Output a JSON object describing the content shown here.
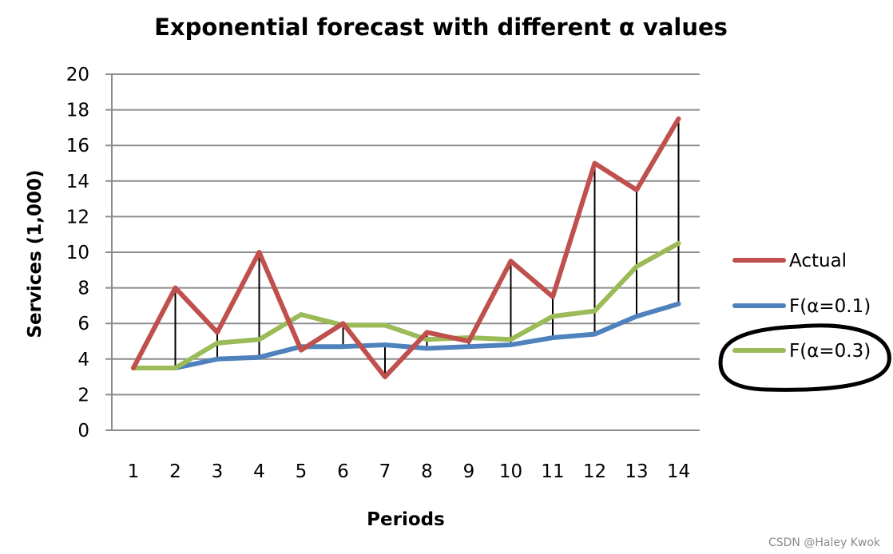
{
  "chart_data": {
    "type": "line",
    "title": "Exponential forecast with different α values",
    "xlabel": "Periods",
    "ylabel": "Services (1,000)",
    "categories": [
      "1",
      "2",
      "3",
      "4",
      "5",
      "6",
      "7",
      "8",
      "9",
      "10",
      "11",
      "12",
      "13",
      "14"
    ],
    "ylim": [
      0,
      20
    ],
    "yticks": [
      0,
      2,
      4,
      6,
      8,
      10,
      12,
      14,
      16,
      18,
      20
    ],
    "grid": true,
    "legend_position": "right",
    "series": [
      {
        "name": "Actual",
        "color": "#c0504d",
        "values": [
          3.5,
          8.0,
          5.5,
          10.0,
          4.5,
          6.0,
          3.0,
          5.5,
          5.0,
          9.5,
          7.5,
          15.0,
          13.5,
          17.5
        ]
      },
      {
        "name": "F(α=0.1)",
        "color": "#4f81bd",
        "values": [
          3.5,
          3.5,
          4.0,
          4.1,
          4.7,
          4.7,
          4.8,
          4.6,
          4.7,
          4.8,
          5.2,
          5.4,
          6.4,
          7.1
        ]
      },
      {
        "name": "F(α=0.3)",
        "color": "#9bbb59",
        "values": [
          3.5,
          3.5,
          4.9,
          5.1,
          6.5,
          5.9,
          5.9,
          5.1,
          5.2,
          5.1,
          6.4,
          6.7,
          9.2,
          10.5
        ]
      }
    ],
    "annotations": [
      "vertical error lines between Actual and F(α=0.1) for each period",
      "hand-drawn circle around F(α=0.3) legend entry"
    ]
  },
  "watermark": "CSDN @Haley Kwok",
  "colors": {
    "grid": "#8c8c8c",
    "axis": "#8c8c8c",
    "error_line": "#000000",
    "circle": "#000000"
  }
}
